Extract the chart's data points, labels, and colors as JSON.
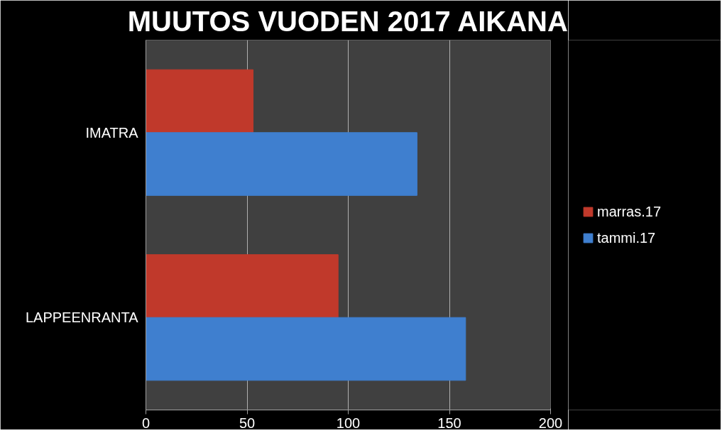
{
  "chart_data": {
    "type": "bar",
    "orientation": "horizontal",
    "title": "MUUTOS VUODEN 2017 AIKANA",
    "categories": [
      "IMATRA",
      "LAPPEENRANTA"
    ],
    "series": [
      {
        "name": "marras.17",
        "color": "#c0392b",
        "values": [
          53,
          95
        ]
      },
      {
        "name": "tammi.17",
        "color": "#3f7fcf",
        "values": [
          134,
          158
        ]
      }
    ],
    "xlim": [
      0,
      200
    ],
    "xticks": [
      0,
      50,
      100,
      150,
      200
    ],
    "grid": "x",
    "legend": "right"
  }
}
